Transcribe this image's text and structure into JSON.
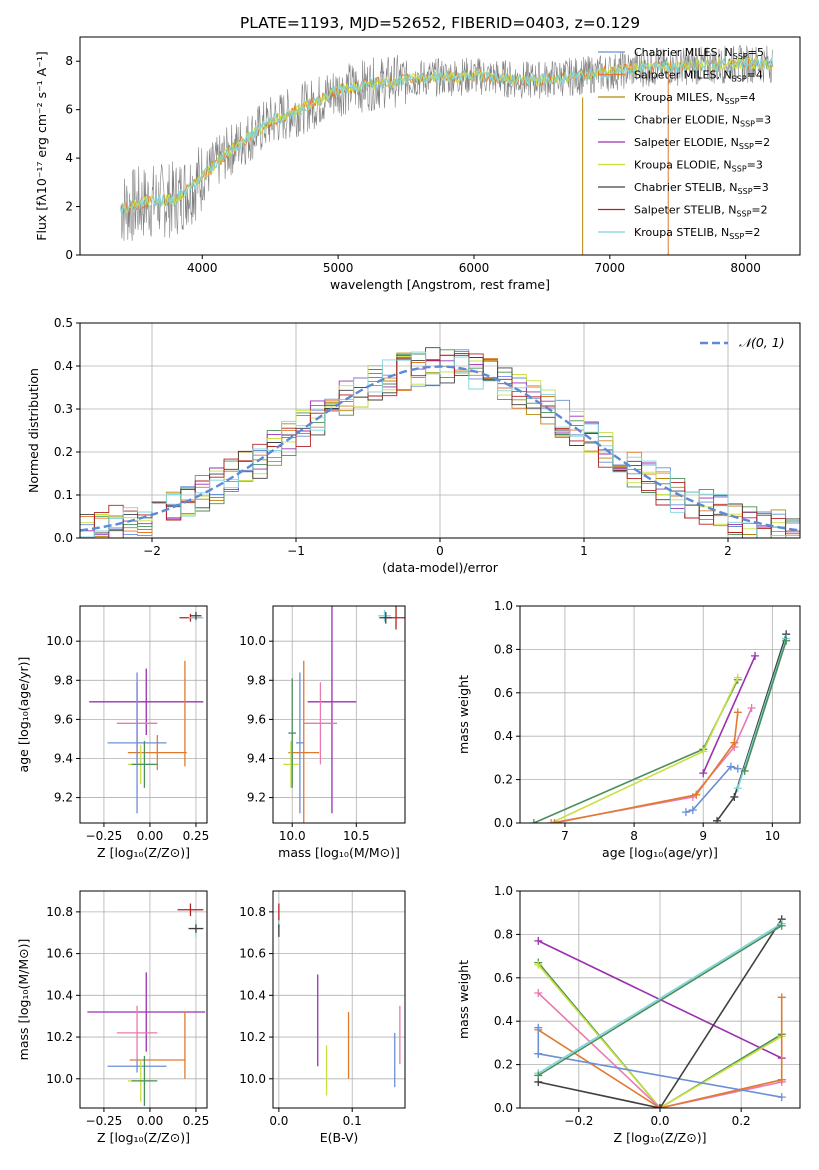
{
  "figure": {
    "title": "PLATE=1193, MJD=52652, FIBERID=0403, z=0.129"
  },
  "colors": {
    "chabrier_miles": "#6b8fd6",
    "salpeter_miles": "#e07b2e",
    "kroupa_miles": "#b8860b",
    "chabrier_elodie": "#4a8f5a",
    "salpeter_elodie": "#9b30b0",
    "kroupa_elodie": "#c8e040",
    "chabrier_stelib": "#404040",
    "salpeter_stelib": "#b22222",
    "kroupa_stelib": "#7fd4dc",
    "data": "#808080",
    "pink": "#e87ab0",
    "lime": "#a8d848",
    "normal": "#5b8ad6"
  },
  "chart_data": [
    {
      "id": "spectrum",
      "type": "line",
      "title": "PLATE=1193, MJD=52652, FIBERID=0403, z=0.129",
      "xlabel": "wavelength [Angstrom, rest frame]",
      "ylabel": "Flux [fλ10⁻¹⁷ erg cm⁻² s⁻¹ A⁻¹]",
      "xlim": [
        3100,
        8400
      ],
      "ylim": [
        0,
        9
      ],
      "xticks": [
        4000,
        5000,
        6000,
        7000,
        8000
      ],
      "yticks": [
        0,
        2,
        4,
        6,
        8
      ],
      "legend_position": "top-right",
      "legend": [
        "Chabrier MILES, N_SSP=5",
        "Salpeter MILES, N_SSP=4",
        "Kroupa MILES, N_SSP=4",
        "Chabrier ELODIE, N_SSP=3",
        "Salpeter ELODIE, N_SSP=2",
        "Kroupa ELODIE, N_SSP=3",
        "Chabrier STELIB, N_SSP=3",
        "Salpeter STELIB, N_SSP=2",
        "Kroupa STELIB, N_SSP=2"
      ],
      "continuum": {
        "x": [
          3400,
          3600,
          3800,
          4000,
          4200,
          4500,
          4800,
          5000,
          5300,
          5600,
          6000,
          6400,
          6800,
          7200,
          7600,
          8000,
          8200
        ],
        "y": [
          1.9,
          2.2,
          2.3,
          3.2,
          4.3,
          5.5,
          6.2,
          6.8,
          7.1,
          7.3,
          7.4,
          7.2,
          7.4,
          7.7,
          7.8,
          7.9,
          7.9
        ]
      }
    },
    {
      "id": "residuals",
      "type": "histogram",
      "xlabel": "(data-model)/error",
      "ylabel": "Normed distribution",
      "xlim": [
        -2.5,
        2.5
      ],
      "ylim": [
        0,
        0.5
      ],
      "xticks": [
        -2,
        -1,
        0,
        1,
        2
      ],
      "yticks": [
        0.0,
        0.1,
        0.2,
        0.3,
        0.4,
        0.5
      ],
      "legend": "𝒩(0, 1)",
      "legend_position": "top-right",
      "grid": true
    },
    {
      "id": "age_vs_Z",
      "type": "scatter",
      "xlabel": "Z [log₁₀(Z/Z⊙)]",
      "ylabel": "age  [log₁₀(age/yr)]",
      "xlim": [
        -0.38,
        0.31
      ],
      "ylim": [
        9.07,
        10.18
      ],
      "xticks": [
        -0.25,
        0.0,
        0.25
      ],
      "yticks": [
        9.2,
        9.4,
        9.6,
        9.8,
        10.0
      ],
      "grid": true,
      "points": [
        {
          "x": 0.22,
          "y": 10.12,
          "xerr": 0.06,
          "yerr": 0.02,
          "c": "#b22222"
        },
        {
          "x": 0.25,
          "y": 10.12,
          "xerr": 0.04,
          "yerr": 0.02,
          "c": "#7fd4dc"
        },
        {
          "x": 0.25,
          "y": 10.13,
          "xerr": 0.03,
          "yerr": 0.02,
          "c": "#404040"
        },
        {
          "x": -0.02,
          "y": 9.69,
          "xerr": 0.31,
          "yerr": 0.17,
          "c": "#9b30b0"
        },
        {
          "x": -0.07,
          "y": 9.58,
          "xerr": 0.11,
          "yerr": 0.21,
          "c": "#e87ab0"
        },
        {
          "x": 0.04,
          "y": 9.43,
          "xerr": 0.16,
          "yerr": 0.09,
          "c": "#e07b2e"
        },
        {
          "x": -0.07,
          "y": 9.48,
          "xerr": 0.16,
          "yerr": 0.36,
          "c": "#6b8fd6"
        },
        {
          "x": -0.05,
          "y": 9.37,
          "xerr": 0.07,
          "yerr": 0.1,
          "c": "#c8e040"
        },
        {
          "x": -0.03,
          "y": 9.37,
          "xerr": 0.07,
          "yerr": 0.12,
          "c": "#4a8f5a"
        },
        {
          "x": 0.19,
          "y": 9.63,
          "xerr": 0.0,
          "yerr": 0.27,
          "c": "#e07b2e"
        }
      ]
    },
    {
      "id": "age_vs_mass",
      "type": "scatter",
      "xlabel": "mass [log₁₀(M/M⊙)]",
      "ylabel": "",
      "xlim": [
        9.85,
        10.88
      ],
      "ylim": [
        9.07,
        10.18
      ],
      "xticks": [
        10.0,
        10.5
      ],
      "yticks": [
        9.2,
        9.4,
        9.6,
        9.8,
        10.0
      ],
      "grid": true,
      "points": [
        {
          "x": 10.81,
          "y": 10.12,
          "xerr": 0.09,
          "yerr": 0.06,
          "c": "#b22222"
        },
        {
          "x": 10.72,
          "y": 10.13,
          "xerr": 0.05,
          "yerr": 0.03,
          "c": "#7fd4dc"
        },
        {
          "x": 10.73,
          "y": 10.12,
          "xerr": 0.05,
          "yerr": 0.03,
          "c": "#404040"
        },
        {
          "x": 10.31,
          "y": 9.69,
          "xerr": 0.19,
          "yerr": 0.57,
          "c": "#9b30b0"
        },
        {
          "x": 10.22,
          "y": 9.58,
          "xerr": 0.13,
          "yerr": 0.21,
          "c": "#e87ab0"
        },
        {
          "x": 10.09,
          "y": 9.43,
          "xerr": 0.12,
          "yerr": 0.47,
          "c": "#e07b2e"
        },
        {
          "x": 10.06,
          "y": 9.48,
          "xerr": 0.03,
          "yerr": 0.36,
          "c": "#6b8fd6"
        },
        {
          "x": 9.99,
          "y": 9.37,
          "xerr": 0.06,
          "yerr": 0.12,
          "c": "#c8e040"
        },
        {
          "x": 10.0,
          "y": 9.53,
          "xerr": 0.03,
          "yerr": 0.28,
          "c": "#4a8f5a"
        }
      ]
    },
    {
      "id": "mass_weight_vs_age",
      "type": "line",
      "xlabel": "age  [log₁₀(age/yr)]",
      "ylabel": "mass weight",
      "xlim": [
        6.35,
        10.4
      ],
      "ylim": [
        0,
        1.0
      ],
      "xticks": [
        7,
        8,
        9,
        10
      ],
      "yticks": [
        0.0,
        0.2,
        0.4,
        0.6,
        0.8,
        1.0
      ],
      "grid": true,
      "series": [
        {
          "c": "#4a8f5a",
          "x": [
            6.55,
            9.0,
            9.5
          ],
          "y": [
            0.0,
            0.34,
            0.66
          ]
        },
        {
          "c": "#c8e040",
          "x": [
            6.8,
            9.0,
            9.5
          ],
          "y": [
            0.0,
            0.33,
            0.67
          ]
        },
        {
          "c": "#9b30b0",
          "x": [
            9.0,
            9.75
          ],
          "y": [
            0.23,
            0.77
          ]
        },
        {
          "c": "#e87ab0",
          "x": [
            6.8,
            8.85,
            9.45,
            9.7
          ],
          "y": [
            0.0,
            0.12,
            0.35,
            0.53
          ]
        },
        {
          "c": "#e07b2e",
          "x": [
            6.85,
            8.9,
            9.45,
            9.5
          ],
          "y": [
            0.0,
            0.13,
            0.37,
            0.51
          ]
        },
        {
          "c": "#6b8fd6",
          "x": [
            8.75,
            8.85,
            9.4,
            9.5
          ],
          "y": [
            0.05,
            0.06,
            0.26,
            0.25
          ]
        },
        {
          "c": "#404040",
          "x": [
            9.2,
            9.45,
            10.2
          ],
          "y": [
            0.01,
            0.12,
            0.87
          ]
        },
        {
          "c": "#7fd4dc",
          "x": [
            9.5,
            10.2
          ],
          "y": [
            0.16,
            0.85
          ]
        },
        {
          "c": "#4a8f5a",
          "x": [
            9.6,
            10.2
          ],
          "y": [
            0.24,
            0.84
          ]
        }
      ]
    },
    {
      "id": "mass_vs_Z",
      "type": "scatter",
      "xlabel": "Z [log₁₀(Z/Z⊙)]",
      "ylabel": "mass [log₁₀(M/M⊙)]",
      "xlim": [
        -0.38,
        0.31
      ],
      "ylim": [
        9.86,
        10.9
      ],
      "xticks": [
        -0.25,
        0.0,
        0.25
      ],
      "yticks": [
        10.0,
        10.2,
        10.4,
        10.6,
        10.8
      ],
      "grid": true,
      "points": [
        {
          "x": 0.22,
          "y": 10.81,
          "xerr": 0.07,
          "yerr": 0.03,
          "c": "#b22222"
        },
        {
          "x": 0.25,
          "y": 10.72,
          "xerr": 0.04,
          "yerr": 0.04,
          "c": "#7fd4dc"
        },
        {
          "x": 0.25,
          "y": 10.72,
          "xerr": 0.04,
          "yerr": 0.02,
          "c": "#404040"
        },
        {
          "x": -0.02,
          "y": 10.32,
          "xerr": 0.32,
          "yerr": 0.19,
          "c": "#9b30b0"
        },
        {
          "x": -0.07,
          "y": 10.22,
          "xerr": 0.11,
          "yerr": 0.13,
          "c": "#e87ab0"
        },
        {
          "x": 0.04,
          "y": 10.09,
          "xerr": 0.15,
          "yerr": 0.0,
          "c": "#e07b2e"
        },
        {
          "x": -0.07,
          "y": 10.06,
          "xerr": 0.16,
          "yerr": 0.03,
          "c": "#6b8fd6"
        },
        {
          "x": -0.05,
          "y": 9.99,
          "xerr": 0.07,
          "yerr": 0.1,
          "c": "#c8e040"
        },
        {
          "x": -0.03,
          "y": 9.99,
          "xerr": 0.07,
          "yerr": 0.12,
          "c": "#4a8f5a"
        },
        {
          "x": 0.19,
          "y": 10.16,
          "xerr": 0.0,
          "yerr": 0.16,
          "c": "#e07b2e"
        }
      ]
    },
    {
      "id": "mass_vs_ebv",
      "type": "scatter",
      "xlabel": "E(B-V)",
      "ylabel": "",
      "xlim": [
        -0.008,
        0.172
      ],
      "ylim": [
        9.86,
        10.9
      ],
      "xticks": [
        0.0,
        0.1
      ],
      "yticks": [
        10.0,
        10.2,
        10.4,
        10.6,
        10.8
      ],
      "grid": true,
      "points": [
        {
          "x": 0.0,
          "y": 10.78,
          "xerr": 0.0,
          "yerr": 0.06,
          "c": "#b22222"
        },
        {
          "x": 0.0,
          "y": 10.72,
          "xerr": 0.0,
          "yerr": 0.04,
          "c": "#7fd4dc"
        },
        {
          "x": 0.0,
          "y": 10.71,
          "xerr": 0.0,
          "yerr": 0.03,
          "c": "#404040"
        },
        {
          "x": 0.053,
          "y": 10.28,
          "xerr": 0.0,
          "yerr": 0.22,
          "c": "#9b30b0"
        },
        {
          "x": 0.065,
          "y": 10.04,
          "xerr": 0.0,
          "yerr": 0.12,
          "c": "#c8e040"
        },
        {
          "x": 0.095,
          "y": 10.16,
          "xerr": 0.0,
          "yerr": 0.16,
          "c": "#e07b2e"
        },
        {
          "x": 0.158,
          "y": 10.09,
          "xerr": 0.0,
          "yerr": 0.13,
          "c": "#6b8fd6"
        },
        {
          "x": 0.165,
          "y": 10.21,
          "xerr": 0.0,
          "yerr": 0.14,
          "c": "#e87ab0"
        }
      ]
    },
    {
      "id": "mass_weight_vs_Z",
      "type": "line",
      "xlabel": "Z [log₁₀(Z/Z⊙)]",
      "ylabel": "mass weight",
      "xlim": [
        -0.345,
        0.345
      ],
      "ylim": [
        0,
        1.0
      ],
      "xticks": [
        -0.2,
        0.0,
        0.2
      ],
      "yticks": [
        0.0,
        0.2,
        0.4,
        0.6,
        0.8,
        1.0
      ],
      "grid": true,
      "series": [
        {
          "c": "#9b30b0",
          "x": [
            -0.3,
            0.3
          ],
          "y": [
            0.77,
            0.23
          ]
        },
        {
          "c": "#4a8f5a",
          "x": [
            -0.3,
            0.0,
            0.3
          ],
          "y": [
            0.67,
            0.0,
            0.34
          ]
        },
        {
          "c": "#c8e040",
          "x": [
            -0.3,
            0.0,
            0.3
          ],
          "y": [
            0.66,
            0.0,
            0.33
          ]
        },
        {
          "c": "#e87ab0",
          "x": [
            -0.3,
            0.0,
            0.3
          ],
          "y": [
            0.53,
            0.0,
            0.12
          ]
        },
        {
          "c": "#e07b2e",
          "x": [
            -0.3,
            0.0,
            0.3
          ],
          "y": [
            0.36,
            0.0,
            0.13
          ]
        },
        {
          "c": "#6b8fd6",
          "x": [
            -0.3,
            0.3
          ],
          "y": [
            0.25,
            0.05
          ]
        },
        {
          "c": "#404040",
          "x": [
            -0.3,
            0.0,
            0.3
          ],
          "y": [
            0.12,
            0.0,
            0.87
          ]
        },
        {
          "c": "#7fd4dc",
          "x": [
            -0.3,
            0.3
          ],
          "y": [
            0.16,
            0.85
          ]
        },
        {
          "c": "#4a8f5a",
          "x": [
            -0.3,
            0.3
          ],
          "y": [
            0.15,
            0.84
          ]
        },
        {
          "c": "#e07b2e",
          "x": [
            0.3,
            0.3
          ],
          "y": [
            0.13,
            0.51
          ]
        },
        {
          "c": "#6b8fd6",
          "x": [
            -0.3,
            -0.3
          ],
          "y": [
            0.25,
            0.37
          ]
        }
      ]
    }
  ]
}
